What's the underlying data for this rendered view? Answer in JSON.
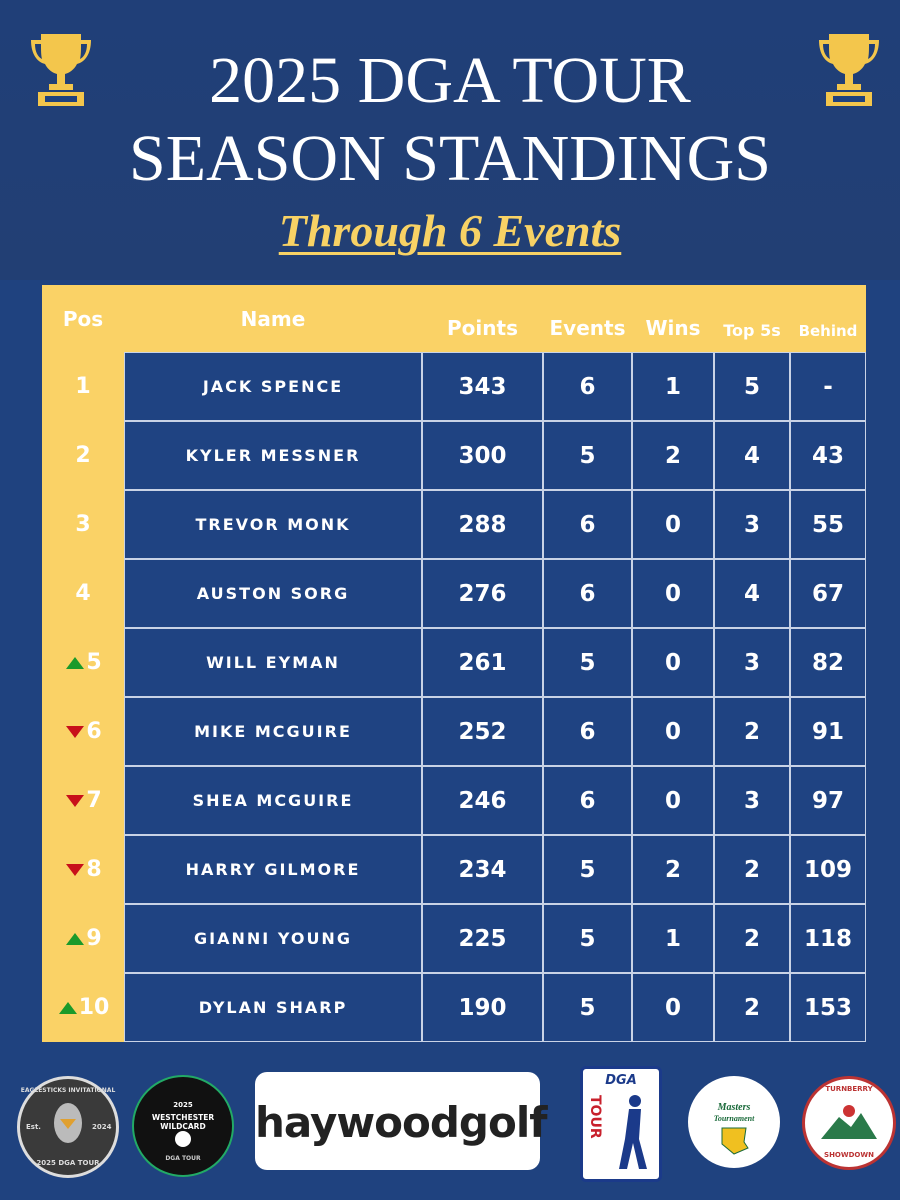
{
  "header": {
    "title_line1": "2025 DGA TOUR",
    "title_line2": "SEASON STANDINGS",
    "subtitle": "Through 6 Events"
  },
  "table": {
    "columns": [
      "Pos",
      "Name",
      "Points",
      "Events",
      "Wins",
      "Top 5s",
      "Behind"
    ],
    "rows": [
      {
        "trend": null,
        "cells": [
          1,
          "JACK SPENCE",
          343,
          6,
          1,
          5,
          "-"
        ]
      },
      {
        "trend": null,
        "cells": [
          2,
          "KYLER MESSNER",
          300,
          5,
          2,
          4,
          43
        ]
      },
      {
        "trend": null,
        "cells": [
          3,
          "TREVOR MONK",
          288,
          6,
          0,
          3,
          55
        ]
      },
      {
        "trend": null,
        "cells": [
          4,
          "AUSTON SORG",
          276,
          6,
          0,
          4,
          67
        ]
      },
      {
        "trend": "up",
        "cells": [
          5,
          "WILL EYMAN",
          261,
          5,
          0,
          3,
          82
        ]
      },
      {
        "trend": "down",
        "cells": [
          6,
          "MIKE MCGUIRE",
          252,
          6,
          0,
          2,
          91
        ]
      },
      {
        "trend": "down",
        "cells": [
          7,
          "SHEA MCGUIRE",
          246,
          6,
          0,
          3,
          97
        ]
      },
      {
        "trend": "down",
        "cells": [
          8,
          "HARRY GILMORE",
          234,
          5,
          2,
          2,
          109
        ]
      },
      {
        "trend": "up",
        "cells": [
          9,
          "GIANNI YOUNG",
          225,
          5,
          1,
          2,
          118
        ]
      },
      {
        "trend": "up",
        "cells": [
          10,
          "DYLAN SHARP",
          190,
          5,
          0,
          2,
          153
        ]
      }
    ]
  },
  "logos": {
    "eaglesticks": {
      "top": "EAGLESTICKS INVITATIONAL",
      "est": "Est.",
      "year": "2024",
      "bottom": "2025 DGA TOUR"
    },
    "westchester": {
      "year": "2025",
      "name": "WESTCHESTER WILDCARD",
      "bottom": "DGA TOUR"
    },
    "sponsor": "haywoodgolf",
    "dga": {
      "top": "DGA",
      "bottom": "TOUR"
    },
    "masters": {
      "line1": "Masters",
      "line2": "Tournament"
    },
    "turnberry": {
      "top": "TURNBERRY",
      "bottom": "SHOWDOWN"
    }
  }
}
